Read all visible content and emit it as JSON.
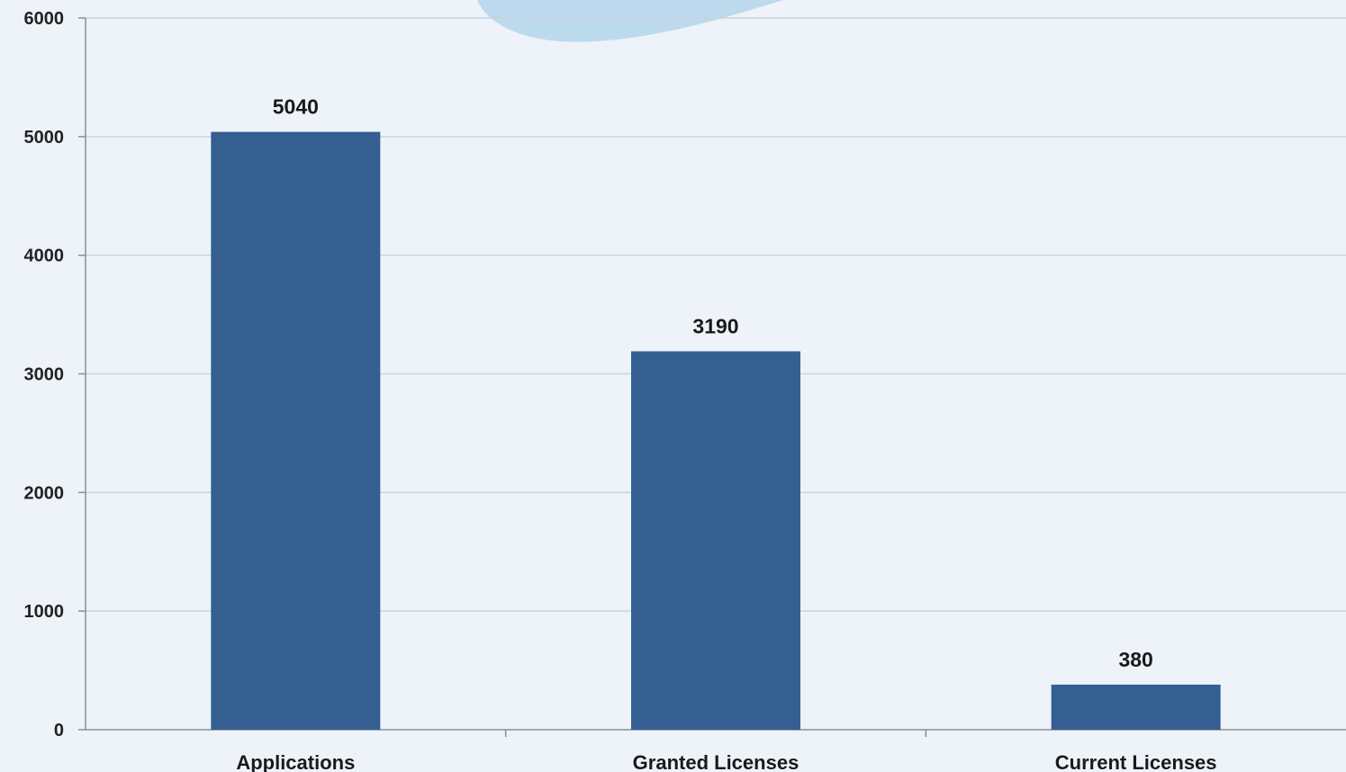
{
  "chart_data": {
    "type": "bar",
    "categories": [
      "Applications",
      "Granted Licenses",
      "Current Licenses"
    ],
    "values": [
      5040,
      3190,
      380
    ],
    "data_labels": [
      "5040",
      "3190",
      "380"
    ],
    "title": "",
    "xlabel": "",
    "ylabel": "",
    "ylim": [
      0,
      6000
    ],
    "yticks": [
      "0",
      "1000",
      "2000",
      "3000",
      "4000",
      "5000",
      "6000"
    ],
    "grid": true,
    "legend": "none",
    "colors": {
      "bar": "#355e91",
      "grid": "#c9d3de",
      "axis": "#8a8f96",
      "background": "#edf3f9",
      "decor": "#bcd9ee"
    }
  }
}
